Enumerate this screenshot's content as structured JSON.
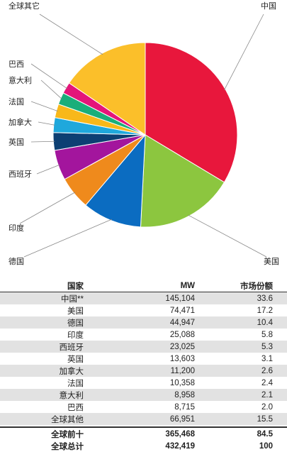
{
  "chart_data": {
    "type": "pie",
    "slices": [
      {
        "label": "中国",
        "value": 33.6,
        "color": "#e8173c"
      },
      {
        "label": "美国",
        "value": 17.2,
        "color": "#8cc63f"
      },
      {
        "label": "德国",
        "value": 10.4,
        "color": "#0b6cc1"
      },
      {
        "label": "印度",
        "value": 5.8,
        "color": "#ef8a1c"
      },
      {
        "label": "西班牙",
        "value": 5.3,
        "color": "#a3159d"
      },
      {
        "label": "英国",
        "value": 3.1,
        "color": "#0d3f73"
      },
      {
        "label": "加拿大",
        "value": 2.6,
        "color": "#1fa8dc"
      },
      {
        "label": "法国",
        "value": 2.4,
        "color": "#f8b81a"
      },
      {
        "label": "意大利",
        "value": 2.1,
        "color": "#1aae7a"
      },
      {
        "label": "巴西",
        "value": 2.0,
        "color": "#e4157a"
      },
      {
        "label": "全球其它",
        "value": 15.5,
        "color": "#fbbf2a"
      }
    ]
  },
  "table": {
    "headers": {
      "country": "国家",
      "mw": "MW",
      "share": "市场份额"
    },
    "rows": [
      {
        "country": "中国**",
        "mw": "145,104",
        "share": "33.6"
      },
      {
        "country": "美国",
        "mw": "74,471",
        "share": "17.2"
      },
      {
        "country": "德国",
        "mw": "44,947",
        "share": "10.4"
      },
      {
        "country": "印度",
        "mw": "25,088",
        "share": "5.8"
      },
      {
        "country": "西班牙",
        "mw": "23,025",
        "share": "5.3"
      },
      {
        "country": "英国",
        "mw": "13,603",
        "share": "3.1"
      },
      {
        "country": "加拿大",
        "mw": "11,200",
        "share": "2.6"
      },
      {
        "country": "法国",
        "mw": "10,358",
        "share": "2.4"
      },
      {
        "country": "意大利",
        "mw": "8,958",
        "share": "2.1"
      },
      {
        "country": "巴西",
        "mw": "8,715",
        "share": "2.0"
      },
      {
        "country": "全球其他",
        "mw": "66,951",
        "share": "15.5"
      }
    ],
    "totals": [
      {
        "country": "全球前十",
        "mw": "365,468",
        "share": "84.5"
      },
      {
        "country": "全球总计",
        "mw": "432,419",
        "share": "100"
      }
    ]
  }
}
